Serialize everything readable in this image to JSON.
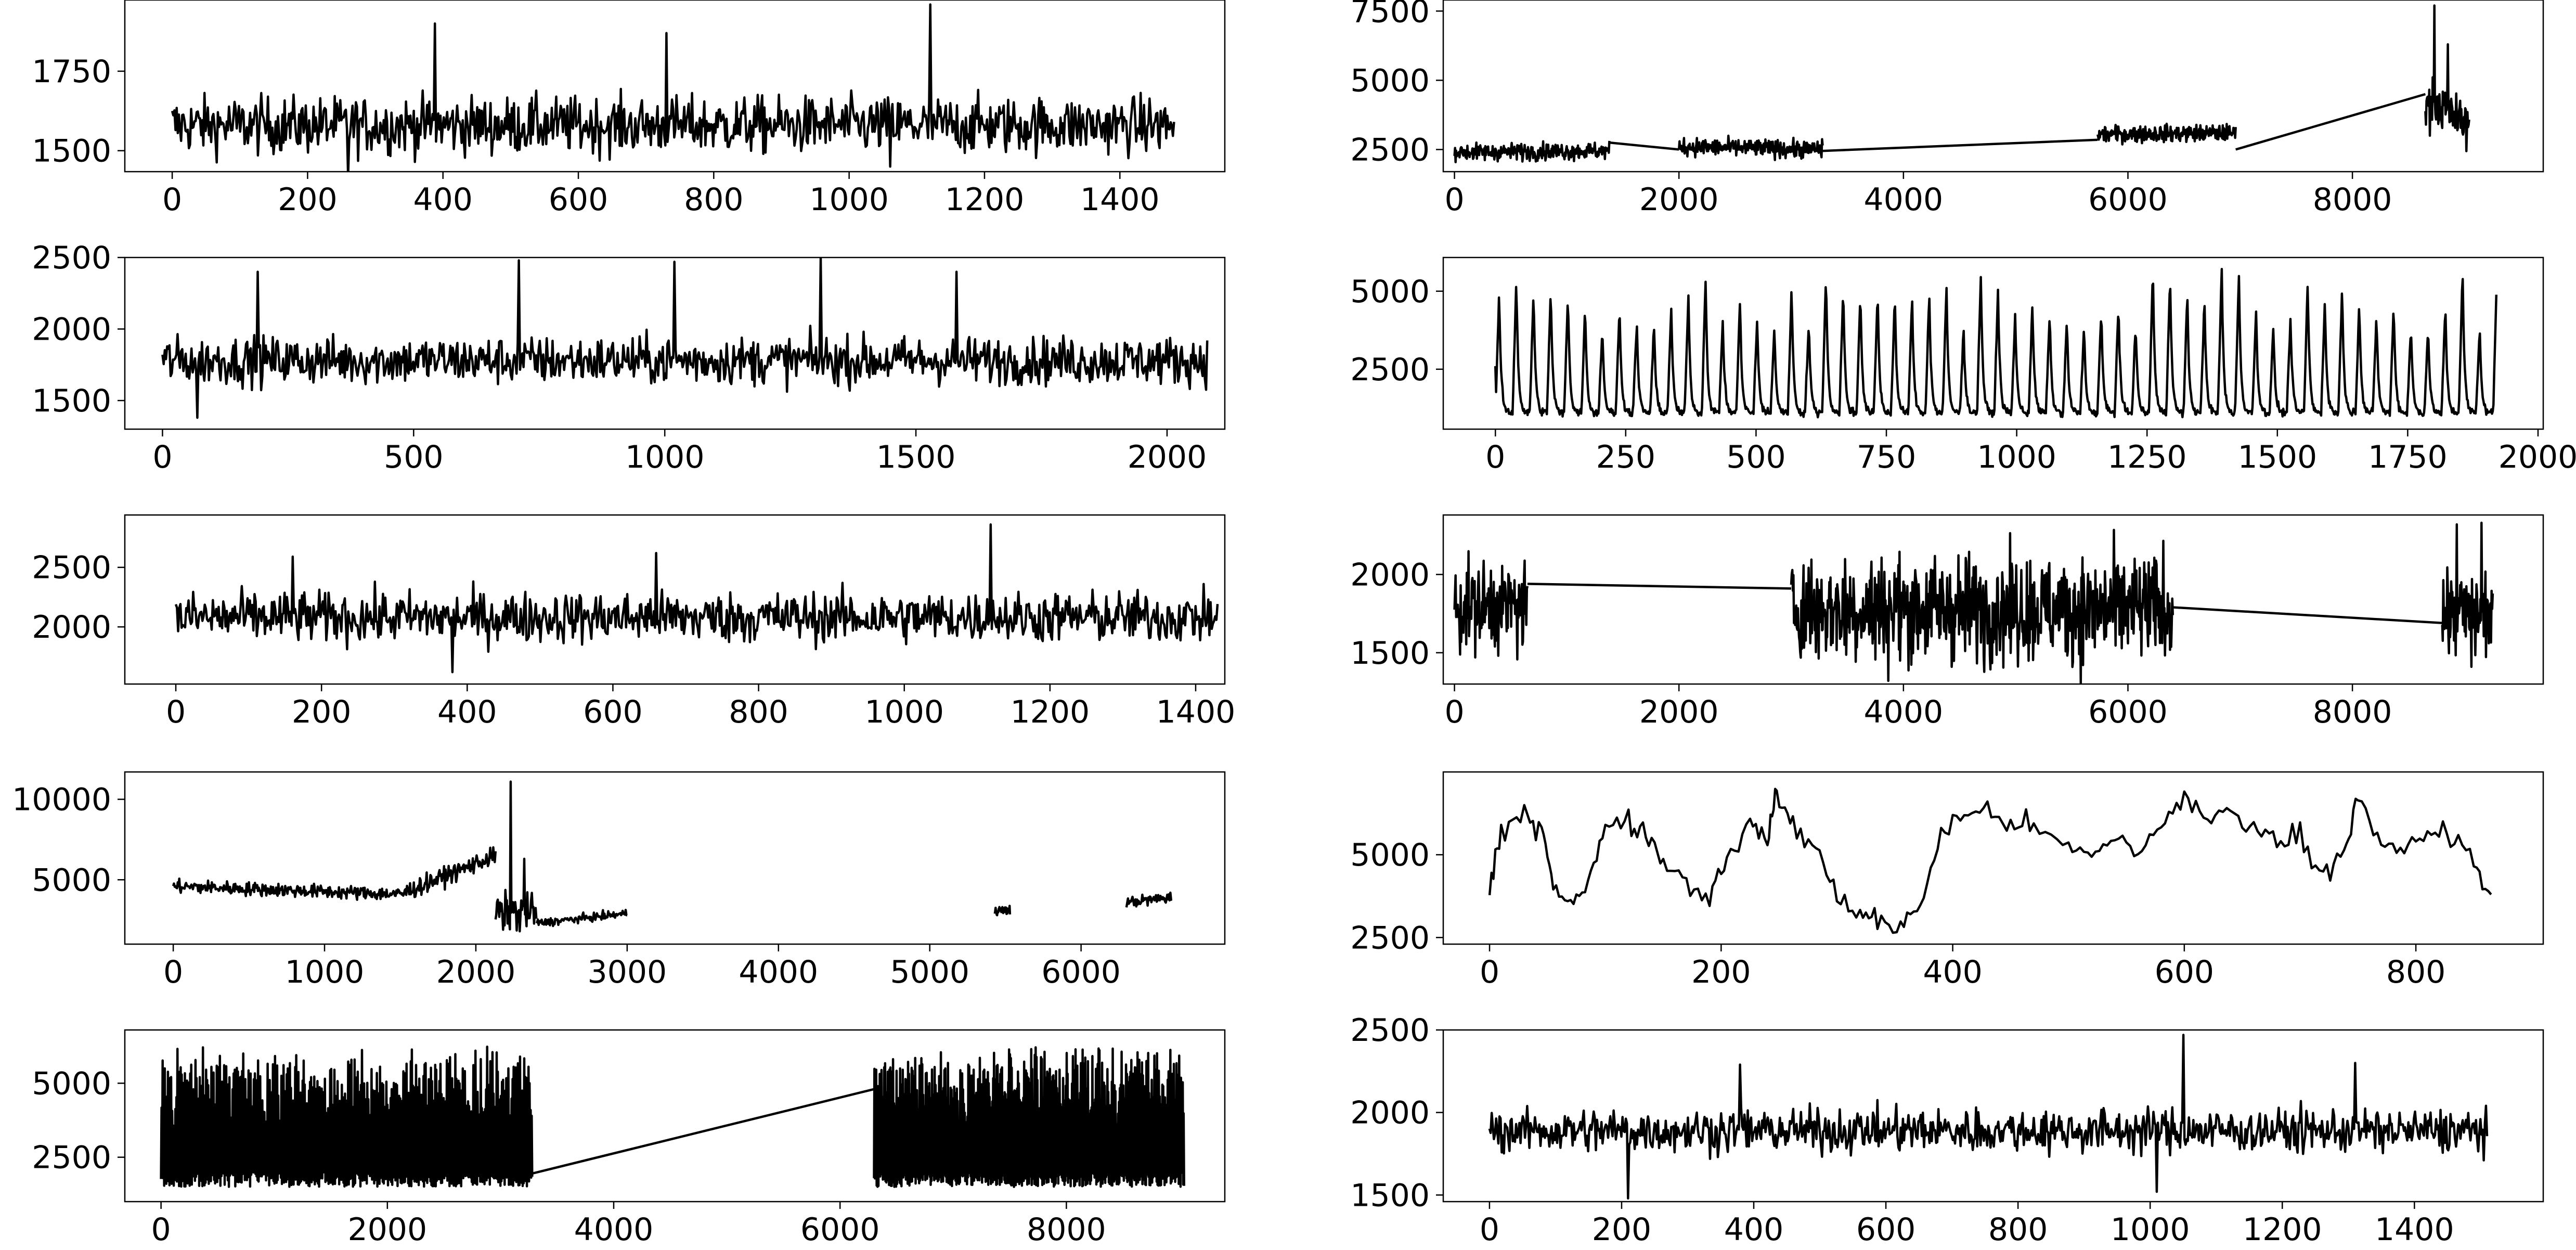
{
  "chart_data": [
    {
      "type": "line",
      "xlim": [
        -70,
        1555
      ],
      "ylim": [
        1434,
        1974
      ],
      "xticks": [
        0,
        200,
        400,
        600,
        800,
        1000,
        1200,
        1400
      ],
      "yticks": [
        1500,
        1750
      ],
      "grid": false,
      "series": [
        {
          "x_range": [
            0,
            1480
          ],
          "color": "#000000",
          "pattern": "noise",
          "base": 1580,
          "amp": 75,
          "spikes": [
            [
              259,
              1420
            ],
            [
              388,
              1900
            ],
            [
              730,
              1870
            ],
            [
              1120,
              1960
            ],
            [
              1060,
              1450
            ]
          ]
        }
      ]
    },
    {
      "type": "line",
      "xlim": [
        -75,
        2115
      ],
      "ylim": [
        1300,
        2500
      ],
      "xticks": [
        0,
        500,
        1000,
        1500,
        2000
      ],
      "yticks": [
        1500,
        2000,
        2500
      ],
      "grid": false,
      "series": [
        {
          "x_range": [
            0,
            2080
          ],
          "color": "#000000",
          "pattern": "noise",
          "base": 1780,
          "amp": 140,
          "spikes": [
            [
              190,
              2400
            ],
            [
              710,
              2480
            ],
            [
              1020,
              2470
            ],
            [
              1310,
              2500
            ],
            [
              1580,
              2400
            ],
            [
              70,
              1380
            ]
          ]
        }
      ]
    },
    {
      "type": "line",
      "xlim": [
        -70,
        1440
      ],
      "ylim": [
        1520,
        2940
      ],
      "xticks": [
        0,
        200,
        400,
        600,
        800,
        1000,
        1200,
        1400
      ],
      "yticks": [
        2000,
        2500
      ],
      "grid": false,
      "series": [
        {
          "x_range": [
            0,
            1430
          ],
          "color": "#000000",
          "pattern": "noise",
          "base": 2080,
          "amp": 180,
          "spikes": [
            [
              1118,
              2860
            ],
            [
              160,
              2590
            ],
            [
              380,
              1620
            ],
            [
              660,
              2620
            ]
          ]
        }
      ]
    },
    {
      "type": "line",
      "xlim": [
        -320,
        6950
      ],
      "ylim": [
        1000,
        11700
      ],
      "xticks": [
        0,
        1000,
        2000,
        3000,
        4000,
        5000,
        6000
      ],
      "yticks": [
        5000,
        10000
      ],
      "grid": false,
      "series": [
        {
          "color": "#000000",
          "pattern": "regime",
          "segments": [
            [
              0,
              1500,
              4600,
              4100,
              300
            ],
            [
              1500,
              2130,
              4100,
              6500,
              400
            ],
            [
              2130,
              2400,
              3000,
              3000,
              800
            ],
            [
              2400,
              3000,
              2300,
              2900,
              180
            ],
            [
              5430,
              5530,
              3100,
              3100,
              200
            ],
            [
              6300,
              6600,
              3600,
              3900,
              250
            ]
          ],
          "spikes": [
            [
              2230,
              11100
            ],
            [
              2180,
              1900
            ],
            [
              2320,
              6300
            ],
            [
              2290,
              1800
            ]
          ]
        }
      ]
    },
    {
      "type": "line",
      "xlim": [
        -320,
        9400
      ],
      "ylim": [
        1000,
        6800
      ],
      "xticks": [
        0,
        2000,
        4000,
        6000,
        8000
      ],
      "yticks": [
        2500,
        5000
      ],
      "grid": false,
      "series": [
        {
          "color": "#000000",
          "pattern": "bursts",
          "segments": [
            [
              0,
              3280,
              70,
              1500,
              6300
            ],
            [
              6300,
              9040,
              70,
              1500,
              6300
            ]
          ],
          "links": [
            [
              3280,
              1950,
              6300,
              4800
            ]
          ]
        }
      ]
    },
    {
      "type": "line",
      "xlim": [
        -100,
        9700
      ],
      "ylim": [
        1700,
        7900
      ],
      "xticks": [
        0,
        2000,
        4000,
        6000,
        8000
      ],
      "yticks": [
        2500,
        5000,
        7500
      ],
      "grid": false,
      "series": [
        {
          "color": "#000000",
          "pattern": "regime",
          "segments": [
            [
              0,
              1380,
              2400,
              2450,
              220
            ],
            [
              2000,
              3280,
              2600,
              2500,
              230
            ],
            [
              5730,
              6960,
              3050,
              3100,
              220
            ],
            [
              8650,
              9040,
              4500,
              3300,
              600
            ]
          ],
          "links": [
            [
              1380,
              2750,
              2000,
              2500
            ],
            [
              3280,
              2450,
              5730,
              2850
            ],
            [
              6960,
              2500,
              8650,
              4500
            ]
          ],
          "spikes": [
            [
              8730,
              7700
            ],
            [
              8690,
              3000
            ],
            [
              8850,
              6300
            ]
          ]
        }
      ]
    },
    {
      "type": "line",
      "xlim": [
        -100,
        2010
      ],
      "ylim": [
        580,
        6080
      ],
      "xticks": [
        0,
        250,
        500,
        750,
        1000,
        1250,
        1500,
        1750,
        2000
      ],
      "yticks": [
        2500,
        5000
      ],
      "grid": false,
      "series": [
        {
          "x_range": [
            0,
            1920
          ],
          "color": "#000000",
          "pattern": "spikes",
          "period": 33,
          "base": 1100,
          "peak_min": 3800,
          "peak_max": 5800
        }
      ]
    },
    {
      "type": "line",
      "xlim": [
        -100,
        9700
      ],
      "ylim": [
        1300,
        2380
      ],
      "xticks": [
        0,
        2000,
        4000,
        6000,
        8000
      ],
      "yticks": [
        1500,
        2000
      ],
      "grid": false,
      "series": [
        {
          "color": "#000000",
          "pattern": "regime",
          "segments": [
            [
              0,
              650,
              1800,
              1800,
              200
            ],
            [
              3000,
              6400,
              1780,
              1780,
              240
            ],
            [
              8800,
              9250,
              1750,
              1750,
              200
            ]
          ],
          "links": [
            [
              650,
              1940,
              3000,
              1910
            ],
            [
              6400,
              1790,
              8800,
              1690
            ]
          ],
          "spikes": [
            [
              9150,
              2330
            ],
            [
              8930,
              2320
            ],
            [
              9060,
              1410
            ]
          ]
        }
      ]
    },
    {
      "type": "line",
      "xlim": [
        -40,
        910
      ],
      "ylim": [
        2300,
        7500
      ],
      "xticks": [
        0,
        200,
        400,
        600,
        800
      ],
      "yticks": [
        2500,
        5000
      ],
      "grid": false,
      "series": [
        {
          "x_range": [
            0,
            865
          ],
          "color": "#000000",
          "pattern": "smooth",
          "points": [
            [
              0,
              3900
            ],
            [
              10,
              5600
            ],
            [
              30,
              6200
            ],
            [
              45,
              5900
            ],
            [
              55,
              4200
            ],
            [
              70,
              3500
            ],
            [
              85,
              4000
            ],
            [
              100,
              6000
            ],
            [
              120,
              6000
            ],
            [
              135,
              5700
            ],
            [
              150,
              4800
            ],
            [
              170,
              4200
            ],
            [
              190,
              3700
            ],
            [
              205,
              5000
            ],
            [
              225,
              5900
            ],
            [
              240,
              5500
            ],
            [
              248,
              6800
            ],
            [
              262,
              5900
            ],
            [
              282,
              5200
            ],
            [
              300,
              3700
            ],
            [
              320,
              3300
            ],
            [
              335,
              3000
            ],
            [
              355,
              2800
            ],
            [
              372,
              3400
            ],
            [
              390,
              5700
            ],
            [
              410,
              6200
            ],
            [
              430,
              6300
            ],
            [
              450,
              6000
            ],
            [
              470,
              5800
            ],
            [
              500,
              5200
            ],
            [
              520,
              4900
            ],
            [
              540,
              5600
            ],
            [
              560,
              5000
            ],
            [
              580,
              6000
            ],
            [
              600,
              6600
            ],
            [
              620,
              6100
            ],
            [
              640,
              6300
            ],
            [
              660,
              5900
            ],
            [
              680,
              5400
            ],
            [
              700,
              5600
            ],
            [
              720,
              4400
            ],
            [
              738,
              5200
            ],
            [
              750,
              6700
            ],
            [
              770,
              5200
            ],
            [
              790,
              5100
            ],
            [
              810,
              5700
            ],
            [
              830,
              5600
            ],
            [
              850,
              4700
            ],
            [
              865,
              3800
            ]
          ]
        }
      ]
    },
    {
      "type": "line",
      "xlim": [
        -70,
        1595
      ],
      "ylim": [
        1460,
        2500
      ],
      "xticks": [
        0,
        200,
        400,
        600,
        800,
        1000,
        1200,
        1400
      ],
      "yticks": [
        1500,
        2000,
        2500
      ],
      "grid": false,
      "series": [
        {
          "x_range": [
            0,
            1510
          ],
          "color": "#000000",
          "pattern": "noise",
          "base": 1890,
          "amp": 110,
          "spikes": [
            [
              1050,
              2470
            ],
            [
              380,
              2290
            ],
            [
              1310,
              2300
            ],
            [
              210,
              1480
            ],
            [
              1010,
              1520
            ]
          ]
        }
      ]
    }
  ]
}
